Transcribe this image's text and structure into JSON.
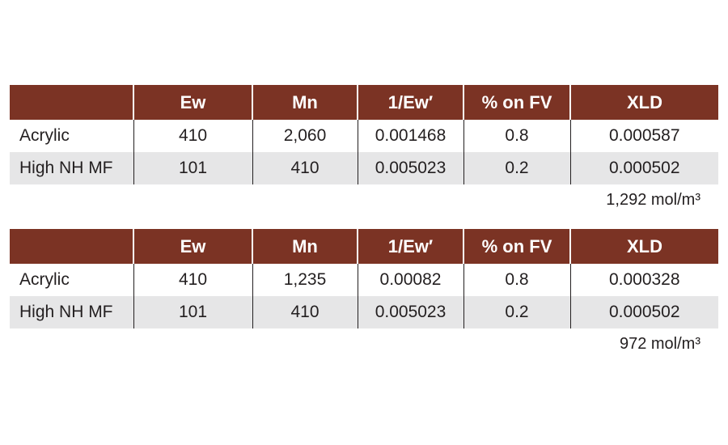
{
  "tables": [
    {
      "header": [
        "Ew",
        "Mn",
        "1/Ew′",
        "% on FV",
        "XLD"
      ],
      "rows": [
        [
          "Acrylic",
          "410",
          "2,060",
          "0.001468",
          "0.8",
          "0.000587"
        ],
        [
          "High NH MF",
          "101",
          "410",
          "0.005023",
          "0.2",
          "0.000502"
        ]
      ],
      "total": "1,292 mol/m³"
    },
    {
      "header": [
        "Ew",
        "Mn",
        "1/Ew′",
        "% on FV",
        "XLD"
      ],
      "rows": [
        [
          "Acrylic",
          "410",
          "1,235",
          "0.00082",
          "0.8",
          "0.000328"
        ],
        [
          "High NH MF",
          "101",
          "410",
          "0.005023",
          "0.2",
          "0.000502"
        ]
      ],
      "total": "972 mol/m³"
    }
  ]
}
